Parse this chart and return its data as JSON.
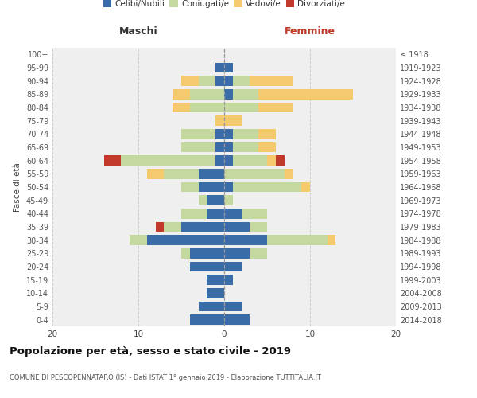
{
  "age_groups": [
    "0-4",
    "5-9",
    "10-14",
    "15-19",
    "20-24",
    "25-29",
    "30-34",
    "35-39",
    "40-44",
    "45-49",
    "50-54",
    "55-59",
    "60-64",
    "65-69",
    "70-74",
    "75-79",
    "80-84",
    "85-89",
    "90-94",
    "95-99",
    "100+"
  ],
  "birth_years": [
    "2014-2018",
    "2009-2013",
    "2004-2008",
    "1999-2003",
    "1994-1998",
    "1989-1993",
    "1984-1988",
    "1979-1983",
    "1974-1978",
    "1969-1973",
    "1964-1968",
    "1959-1963",
    "1954-1958",
    "1949-1953",
    "1944-1948",
    "1939-1943",
    "1934-1938",
    "1929-1933",
    "1924-1928",
    "1919-1923",
    "≤ 1918"
  ],
  "maschi": {
    "celibi": [
      4,
      3,
      2,
      2,
      4,
      4,
      9,
      5,
      2,
      2,
      3,
      3,
      1,
      1,
      1,
      0,
      0,
      0,
      1,
      1,
      0
    ],
    "coniugati": [
      0,
      0,
      0,
      0,
      0,
      1,
      2,
      2,
      3,
      1,
      2,
      4,
      11,
      4,
      4,
      0,
      4,
      4,
      2,
      0,
      0
    ],
    "vedovi": [
      0,
      0,
      0,
      0,
      0,
      0,
      0,
      0,
      0,
      0,
      0,
      2,
      0,
      0,
      0,
      1,
      2,
      2,
      2,
      0,
      0
    ],
    "divorziati": [
      0,
      0,
      0,
      0,
      0,
      0,
      0,
      1,
      0,
      0,
      0,
      0,
      2,
      0,
      0,
      0,
      0,
      0,
      0,
      0,
      0
    ]
  },
  "femmine": {
    "nubili": [
      3,
      2,
      0,
      1,
      2,
      3,
      5,
      3,
      2,
      0,
      1,
      0,
      1,
      1,
      1,
      0,
      0,
      1,
      1,
      1,
      0
    ],
    "coniugate": [
      0,
      0,
      0,
      0,
      0,
      2,
      7,
      2,
      3,
      1,
      8,
      7,
      4,
      3,
      3,
      0,
      4,
      3,
      2,
      0,
      0
    ],
    "vedove": [
      0,
      0,
      0,
      0,
      0,
      0,
      1,
      0,
      0,
      0,
      1,
      1,
      1,
      2,
      2,
      2,
      4,
      11,
      5,
      0,
      0
    ],
    "divorziate": [
      0,
      0,
      0,
      0,
      0,
      0,
      0,
      0,
      0,
      0,
      0,
      0,
      1,
      0,
      0,
      0,
      0,
      0,
      0,
      0,
      0
    ]
  },
  "colors": {
    "celibi_nubili": "#3a6ca8",
    "coniugati": "#c5d8a0",
    "vedovi": "#f5c96e",
    "divorziati": "#c0392b"
  },
  "xlim": 20,
  "title": "Popolazione per età, sesso e stato civile - 2019",
  "subtitle": "COMUNE DI PESCOPENNATARO (IS) - Dati ISTAT 1° gennaio 2019 - Elaborazione TUTTITALIA.IT",
  "ylabel_left": "Fasce di età",
  "xlabel_maschi": "Maschi",
  "xlabel_femmine": "Femmine",
  "bg_color": "#efefef",
  "legend": [
    "Celibi/Nubili",
    "Coniugati/e",
    "Vedovi/e",
    "Divorziati/e"
  ]
}
